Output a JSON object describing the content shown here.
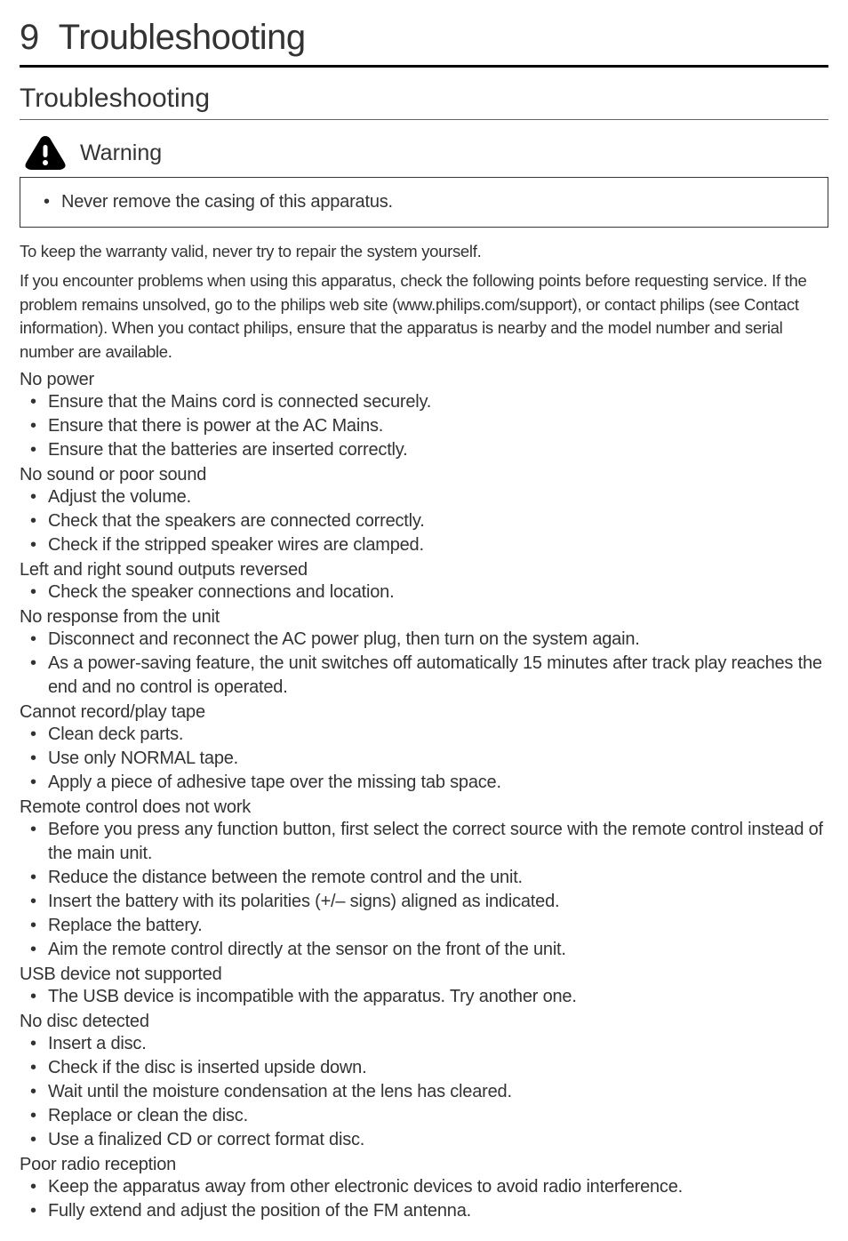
{
  "chapter": {
    "number": "9",
    "title": "Troubleshooting"
  },
  "section_title": "Troubleshooting",
  "warning": {
    "label": "Warning",
    "text": "Never remove the casing of this apparatus.",
    "icon_bg": "#000000",
    "icon_fg": "#ffffff"
  },
  "intro_paragraphs": [
    "To keep the warranty valid, never try to repair the system yourself.",
    "If you encounter problems when using this apparatus, check the following points before requesting service. If the problem remains unsolved, go to the philips web site (www.philips.com/support), or contact philips (see Contact information). When you contact philips, ensure that the apparatus is nearby and the model number and serial number are available."
  ],
  "problems": [
    {
      "heading": "No power",
      "items": [
        "Ensure that the Mains cord is connected securely.",
        "Ensure that there is power at the AC Mains.",
        "Ensure that the batteries are inserted correctly."
      ]
    },
    {
      "heading": "No sound or poor sound",
      "items": [
        "Adjust the volume.",
        "Check that the speakers are connected correctly.",
        "Check if the stripped speaker wires are clamped."
      ]
    },
    {
      "heading": "Left and right sound outputs reversed",
      "items": [
        "Check the speaker connections and location."
      ]
    },
    {
      "heading": "No response from the unit",
      "items": [
        "Disconnect and reconnect the AC power plug, then turn on the system again.",
        "As a power-saving feature, the unit switches off automatically 15 minutes after track play reaches the end and no control is operated."
      ]
    },
    {
      "heading": "Cannot record/play tape",
      "items": [
        "Clean deck parts.",
        "Use only NORMAL tape.",
        "Apply a piece of adhesive tape over the missing tab space."
      ]
    },
    {
      "heading": "Remote control does not work",
      "items": [
        "Before you press any function button, first select the correct source with the remote control instead of the main unit.",
        "Reduce the distance between the remote control and the unit.",
        "Insert the battery with its polarities (+/– signs) aligned as indicated.",
        "Replace the battery.",
        "Aim the remote control directly at the sensor on the front of the unit."
      ],
      "condensed_indices": [
        0
      ]
    },
    {
      "heading": "USB device not supported",
      "items": [
        "The USB device is incompatible with the apparatus. Try another one."
      ]
    },
    {
      "heading": "No disc detected",
      "items": [
        "Insert a disc.",
        "Check if the disc is inserted upside down.",
        "Wait until the moisture condensation at the lens has cleared.",
        "Replace or clean the disc.",
        "Use a finalized CD or correct format disc."
      ]
    },
    {
      "heading": "Poor radio reception",
      "items": [
        "Keep the apparatus away from other electronic devices to avoid radio interference.",
        "Fully extend and adjust the position of the FM antenna."
      ]
    }
  ],
  "styles": {
    "body_bg": "#ffffff",
    "text_color": "#333333",
    "chapter_border": "#000000",
    "section_border": "#666666",
    "warning_border": "#333333",
    "chapter_fontsize": 40,
    "section_fontsize": 30,
    "warning_label_fontsize": 25,
    "warning_text_fontsize": 22,
    "intro_fontsize": 18.5,
    "heading_fontsize": 20,
    "bullet_fontsize": 20
  }
}
